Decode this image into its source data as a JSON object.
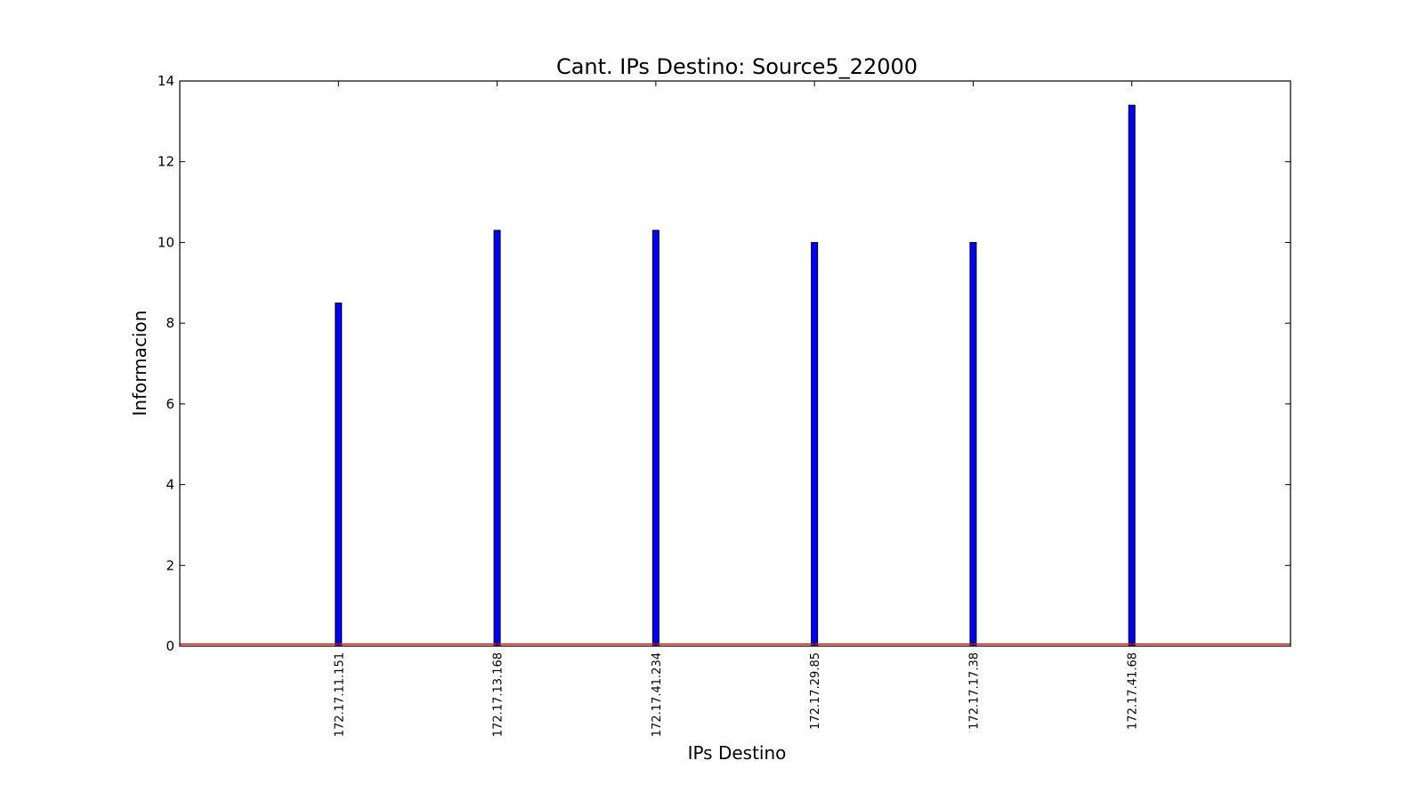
{
  "chart_data": {
    "type": "bar",
    "title": "Cant. IPs Destino: Source5_22000",
    "xlabel": "IPs Destino",
    "ylabel": "Informacion",
    "categories": [
      "172.17.11.151",
      "172.17.13.168",
      "172.17.41.234",
      "172.17.29.85",
      "172.17.17.38",
      "172.17.41.68"
    ],
    "values": [
      8.5,
      10.3,
      10.3,
      10.0,
      10.0,
      13.4
    ],
    "ylim": [
      0,
      14
    ],
    "yticks": [
      0,
      2,
      4,
      6,
      8,
      10,
      12,
      14
    ],
    "bar_color": "#0000ff",
    "reference_line": {
      "y": 0.05,
      "color": "#ff0000"
    },
    "grid": false,
    "legend": "none"
  }
}
